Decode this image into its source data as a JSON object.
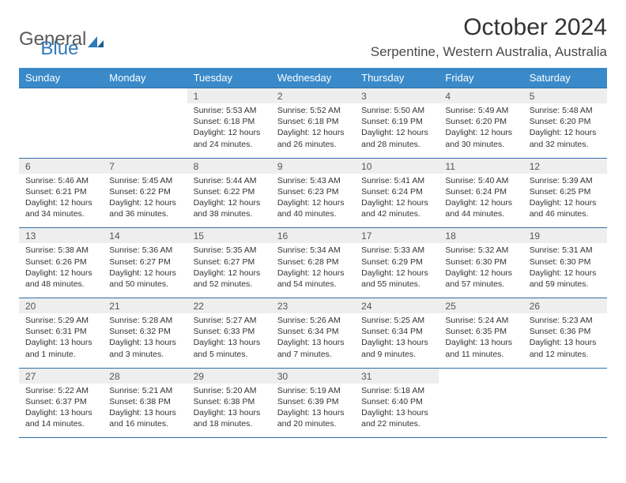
{
  "logo": {
    "word1": "General",
    "word2": "Blue"
  },
  "header": {
    "title": "October 2024",
    "location": "Serpentine, Western Australia, Australia"
  },
  "colors": {
    "header_bg": "#3a8ac9",
    "header_text": "#ffffff",
    "row_border": "#2f6fa8",
    "daynum_bg": "#eeeeee",
    "logo_blue": "#2f79bd"
  },
  "weekdays": [
    "Sunday",
    "Monday",
    "Tuesday",
    "Wednesday",
    "Thursday",
    "Friday",
    "Saturday"
  ],
  "weeks": [
    [
      null,
      null,
      {
        "n": "1",
        "sunrise": "Sunrise: 5:53 AM",
        "sunset": "Sunset: 6:18 PM",
        "daylight": "Daylight: 12 hours and 24 minutes."
      },
      {
        "n": "2",
        "sunrise": "Sunrise: 5:52 AM",
        "sunset": "Sunset: 6:18 PM",
        "daylight": "Daylight: 12 hours and 26 minutes."
      },
      {
        "n": "3",
        "sunrise": "Sunrise: 5:50 AM",
        "sunset": "Sunset: 6:19 PM",
        "daylight": "Daylight: 12 hours and 28 minutes."
      },
      {
        "n": "4",
        "sunrise": "Sunrise: 5:49 AM",
        "sunset": "Sunset: 6:20 PM",
        "daylight": "Daylight: 12 hours and 30 minutes."
      },
      {
        "n": "5",
        "sunrise": "Sunrise: 5:48 AM",
        "sunset": "Sunset: 6:20 PM",
        "daylight": "Daylight: 12 hours and 32 minutes."
      }
    ],
    [
      {
        "n": "6",
        "sunrise": "Sunrise: 5:46 AM",
        "sunset": "Sunset: 6:21 PM",
        "daylight": "Daylight: 12 hours and 34 minutes."
      },
      {
        "n": "7",
        "sunrise": "Sunrise: 5:45 AM",
        "sunset": "Sunset: 6:22 PM",
        "daylight": "Daylight: 12 hours and 36 minutes."
      },
      {
        "n": "8",
        "sunrise": "Sunrise: 5:44 AM",
        "sunset": "Sunset: 6:22 PM",
        "daylight": "Daylight: 12 hours and 38 minutes."
      },
      {
        "n": "9",
        "sunrise": "Sunrise: 5:43 AM",
        "sunset": "Sunset: 6:23 PM",
        "daylight": "Daylight: 12 hours and 40 minutes."
      },
      {
        "n": "10",
        "sunrise": "Sunrise: 5:41 AM",
        "sunset": "Sunset: 6:24 PM",
        "daylight": "Daylight: 12 hours and 42 minutes."
      },
      {
        "n": "11",
        "sunrise": "Sunrise: 5:40 AM",
        "sunset": "Sunset: 6:24 PM",
        "daylight": "Daylight: 12 hours and 44 minutes."
      },
      {
        "n": "12",
        "sunrise": "Sunrise: 5:39 AM",
        "sunset": "Sunset: 6:25 PM",
        "daylight": "Daylight: 12 hours and 46 minutes."
      }
    ],
    [
      {
        "n": "13",
        "sunrise": "Sunrise: 5:38 AM",
        "sunset": "Sunset: 6:26 PM",
        "daylight": "Daylight: 12 hours and 48 minutes."
      },
      {
        "n": "14",
        "sunrise": "Sunrise: 5:36 AM",
        "sunset": "Sunset: 6:27 PM",
        "daylight": "Daylight: 12 hours and 50 minutes."
      },
      {
        "n": "15",
        "sunrise": "Sunrise: 5:35 AM",
        "sunset": "Sunset: 6:27 PM",
        "daylight": "Daylight: 12 hours and 52 minutes."
      },
      {
        "n": "16",
        "sunrise": "Sunrise: 5:34 AM",
        "sunset": "Sunset: 6:28 PM",
        "daylight": "Daylight: 12 hours and 54 minutes."
      },
      {
        "n": "17",
        "sunrise": "Sunrise: 5:33 AM",
        "sunset": "Sunset: 6:29 PM",
        "daylight": "Daylight: 12 hours and 55 minutes."
      },
      {
        "n": "18",
        "sunrise": "Sunrise: 5:32 AM",
        "sunset": "Sunset: 6:30 PM",
        "daylight": "Daylight: 12 hours and 57 minutes."
      },
      {
        "n": "19",
        "sunrise": "Sunrise: 5:31 AM",
        "sunset": "Sunset: 6:30 PM",
        "daylight": "Daylight: 12 hours and 59 minutes."
      }
    ],
    [
      {
        "n": "20",
        "sunrise": "Sunrise: 5:29 AM",
        "sunset": "Sunset: 6:31 PM",
        "daylight": "Daylight: 13 hours and 1 minute."
      },
      {
        "n": "21",
        "sunrise": "Sunrise: 5:28 AM",
        "sunset": "Sunset: 6:32 PM",
        "daylight": "Daylight: 13 hours and 3 minutes."
      },
      {
        "n": "22",
        "sunrise": "Sunrise: 5:27 AM",
        "sunset": "Sunset: 6:33 PM",
        "daylight": "Daylight: 13 hours and 5 minutes."
      },
      {
        "n": "23",
        "sunrise": "Sunrise: 5:26 AM",
        "sunset": "Sunset: 6:34 PM",
        "daylight": "Daylight: 13 hours and 7 minutes."
      },
      {
        "n": "24",
        "sunrise": "Sunrise: 5:25 AM",
        "sunset": "Sunset: 6:34 PM",
        "daylight": "Daylight: 13 hours and 9 minutes."
      },
      {
        "n": "25",
        "sunrise": "Sunrise: 5:24 AM",
        "sunset": "Sunset: 6:35 PM",
        "daylight": "Daylight: 13 hours and 11 minutes."
      },
      {
        "n": "26",
        "sunrise": "Sunrise: 5:23 AM",
        "sunset": "Sunset: 6:36 PM",
        "daylight": "Daylight: 13 hours and 12 minutes."
      }
    ],
    [
      {
        "n": "27",
        "sunrise": "Sunrise: 5:22 AM",
        "sunset": "Sunset: 6:37 PM",
        "daylight": "Daylight: 13 hours and 14 minutes."
      },
      {
        "n": "28",
        "sunrise": "Sunrise: 5:21 AM",
        "sunset": "Sunset: 6:38 PM",
        "daylight": "Daylight: 13 hours and 16 minutes."
      },
      {
        "n": "29",
        "sunrise": "Sunrise: 5:20 AM",
        "sunset": "Sunset: 6:38 PM",
        "daylight": "Daylight: 13 hours and 18 minutes."
      },
      {
        "n": "30",
        "sunrise": "Sunrise: 5:19 AM",
        "sunset": "Sunset: 6:39 PM",
        "daylight": "Daylight: 13 hours and 20 minutes."
      },
      {
        "n": "31",
        "sunrise": "Sunrise: 5:18 AM",
        "sunset": "Sunset: 6:40 PM",
        "daylight": "Daylight: 13 hours and 22 minutes."
      },
      null,
      null
    ]
  ]
}
